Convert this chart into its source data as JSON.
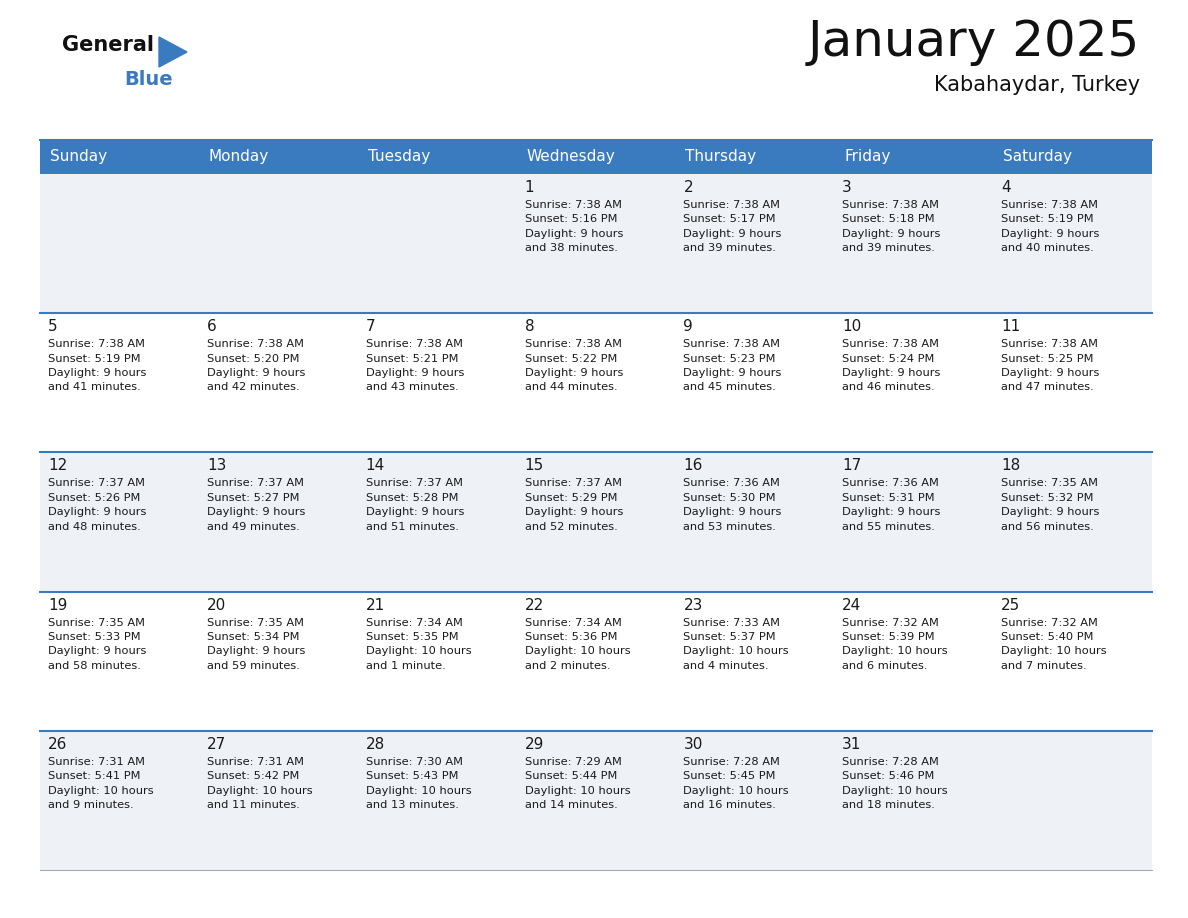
{
  "title": "January 2025",
  "subtitle": "Kabahaydar, Turkey",
  "header_color": "#3a7abf",
  "header_text_color": "#ffffff",
  "bg_color": "#ffffff",
  "row_bg_odd": "#eef2f7",
  "row_bg_even": "#ffffff",
  "text_color": "#1a1a1a",
  "separator_color": "#3a7abf",
  "days_of_week": [
    "Sunday",
    "Monday",
    "Tuesday",
    "Wednesday",
    "Thursday",
    "Friday",
    "Saturday"
  ],
  "calendar": [
    [
      {
        "day": "",
        "info": ""
      },
      {
        "day": "",
        "info": ""
      },
      {
        "day": "",
        "info": ""
      },
      {
        "day": "1",
        "info": "Sunrise: 7:38 AM\nSunset: 5:16 PM\nDaylight: 9 hours\nand 38 minutes."
      },
      {
        "day": "2",
        "info": "Sunrise: 7:38 AM\nSunset: 5:17 PM\nDaylight: 9 hours\nand 39 minutes."
      },
      {
        "day": "3",
        "info": "Sunrise: 7:38 AM\nSunset: 5:18 PM\nDaylight: 9 hours\nand 39 minutes."
      },
      {
        "day": "4",
        "info": "Sunrise: 7:38 AM\nSunset: 5:19 PM\nDaylight: 9 hours\nand 40 minutes."
      }
    ],
    [
      {
        "day": "5",
        "info": "Sunrise: 7:38 AM\nSunset: 5:19 PM\nDaylight: 9 hours\nand 41 minutes."
      },
      {
        "day": "6",
        "info": "Sunrise: 7:38 AM\nSunset: 5:20 PM\nDaylight: 9 hours\nand 42 minutes."
      },
      {
        "day": "7",
        "info": "Sunrise: 7:38 AM\nSunset: 5:21 PM\nDaylight: 9 hours\nand 43 minutes."
      },
      {
        "day": "8",
        "info": "Sunrise: 7:38 AM\nSunset: 5:22 PM\nDaylight: 9 hours\nand 44 minutes."
      },
      {
        "day": "9",
        "info": "Sunrise: 7:38 AM\nSunset: 5:23 PM\nDaylight: 9 hours\nand 45 minutes."
      },
      {
        "day": "10",
        "info": "Sunrise: 7:38 AM\nSunset: 5:24 PM\nDaylight: 9 hours\nand 46 minutes."
      },
      {
        "day": "11",
        "info": "Sunrise: 7:38 AM\nSunset: 5:25 PM\nDaylight: 9 hours\nand 47 minutes."
      }
    ],
    [
      {
        "day": "12",
        "info": "Sunrise: 7:37 AM\nSunset: 5:26 PM\nDaylight: 9 hours\nand 48 minutes."
      },
      {
        "day": "13",
        "info": "Sunrise: 7:37 AM\nSunset: 5:27 PM\nDaylight: 9 hours\nand 49 minutes."
      },
      {
        "day": "14",
        "info": "Sunrise: 7:37 AM\nSunset: 5:28 PM\nDaylight: 9 hours\nand 51 minutes."
      },
      {
        "day": "15",
        "info": "Sunrise: 7:37 AM\nSunset: 5:29 PM\nDaylight: 9 hours\nand 52 minutes."
      },
      {
        "day": "16",
        "info": "Sunrise: 7:36 AM\nSunset: 5:30 PM\nDaylight: 9 hours\nand 53 minutes."
      },
      {
        "day": "17",
        "info": "Sunrise: 7:36 AM\nSunset: 5:31 PM\nDaylight: 9 hours\nand 55 minutes."
      },
      {
        "day": "18",
        "info": "Sunrise: 7:35 AM\nSunset: 5:32 PM\nDaylight: 9 hours\nand 56 minutes."
      }
    ],
    [
      {
        "day": "19",
        "info": "Sunrise: 7:35 AM\nSunset: 5:33 PM\nDaylight: 9 hours\nand 58 minutes."
      },
      {
        "day": "20",
        "info": "Sunrise: 7:35 AM\nSunset: 5:34 PM\nDaylight: 9 hours\nand 59 minutes."
      },
      {
        "day": "21",
        "info": "Sunrise: 7:34 AM\nSunset: 5:35 PM\nDaylight: 10 hours\nand 1 minute."
      },
      {
        "day": "22",
        "info": "Sunrise: 7:34 AM\nSunset: 5:36 PM\nDaylight: 10 hours\nand 2 minutes."
      },
      {
        "day": "23",
        "info": "Sunrise: 7:33 AM\nSunset: 5:37 PM\nDaylight: 10 hours\nand 4 minutes."
      },
      {
        "day": "24",
        "info": "Sunrise: 7:32 AM\nSunset: 5:39 PM\nDaylight: 10 hours\nand 6 minutes."
      },
      {
        "day": "25",
        "info": "Sunrise: 7:32 AM\nSunset: 5:40 PM\nDaylight: 10 hours\nand 7 minutes."
      }
    ],
    [
      {
        "day": "26",
        "info": "Sunrise: 7:31 AM\nSunset: 5:41 PM\nDaylight: 10 hours\nand 9 minutes."
      },
      {
        "day": "27",
        "info": "Sunrise: 7:31 AM\nSunset: 5:42 PM\nDaylight: 10 hours\nand 11 minutes."
      },
      {
        "day": "28",
        "info": "Sunrise: 7:30 AM\nSunset: 5:43 PM\nDaylight: 10 hours\nand 13 minutes."
      },
      {
        "day": "29",
        "info": "Sunrise: 7:29 AM\nSunset: 5:44 PM\nDaylight: 10 hours\nand 14 minutes."
      },
      {
        "day": "30",
        "info": "Sunrise: 7:28 AM\nSunset: 5:45 PM\nDaylight: 10 hours\nand 16 minutes."
      },
      {
        "day": "31",
        "info": "Sunrise: 7:28 AM\nSunset: 5:46 PM\nDaylight: 10 hours\nand 18 minutes."
      },
      {
        "day": "",
        "info": ""
      }
    ]
  ]
}
